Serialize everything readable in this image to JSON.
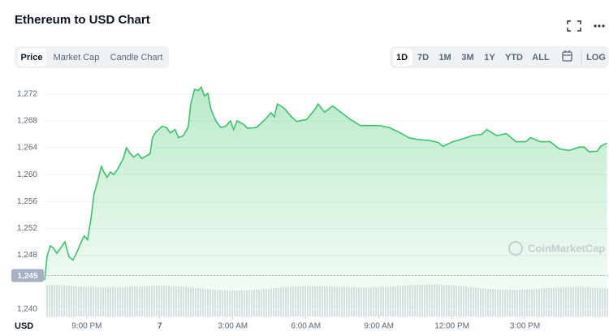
{
  "header": {
    "title": "Ethereum to USD Chart"
  },
  "tabs": [
    "Price",
    "Market Cap",
    "Candle Chart"
  ],
  "ranges": [
    "1D",
    "7D",
    "1M",
    "3M",
    "1Y",
    "YTD",
    "ALL"
  ],
  "log_button": "LOG",
  "watermark": "CoinMarketCap",
  "chart_data": {
    "type": "area",
    "y_label": "USD",
    "color": "#3cc36a",
    "grid": true,
    "x": [
      -4.73,
      -4.63,
      -4.5,
      -4.37,
      -4.23,
      -4.07,
      -3.9,
      -3.73,
      -3.57,
      -3.4,
      -3.23,
      -3.1,
      -2.97,
      -2.83,
      -2.7,
      -2.57,
      -2.4,
      -2.3,
      -2.17,
      -2.03,
      -1.9,
      -1.73,
      -1.5,
      -1.37,
      -1.23,
      -1.07,
      -0.9,
      -0.73,
      -0.4,
      -0.3,
      -0.17,
      0.1,
      0.27,
      0.43,
      0.63,
      0.77,
      0.97,
      1.17,
      1.27,
      1.43,
      1.57,
      1.7,
      1.83,
      1.97,
      2.1,
      2.3,
      2.5,
      2.7,
      2.9,
      3.03,
      3.17,
      3.43,
      3.6,
      3.97,
      4.3,
      4.57,
      4.7,
      4.83,
      5.1,
      5.43,
      5.63,
      6.03,
      6.37,
      6.5,
      6.77,
      7.1,
      7.43,
      7.83,
      8.23,
      8.63,
      9.03,
      9.43,
      9.83,
      10.23,
      10.63,
      11.03,
      11.43,
      11.63,
      12.03,
      12.43,
      12.83,
      13.23,
      13.43,
      13.83,
      14.23,
      14.63,
      15.03,
      15.23,
      15.63,
      16.03,
      16.43,
      16.83,
      17.23,
      17.43,
      17.63,
      17.97,
      18.1,
      18.37
    ],
    "values": [
      1244.3,
      1247.9,
      1249.4,
      1249.1,
      1248.3,
      1249.1,
      1250,
      1247.8,
      1247.3,
      1248.5,
      1250,
      1250.9,
      1250.3,
      1253.4,
      1257.2,
      1258.8,
      1261.2,
      1260.4,
      1259.6,
      1260.4,
      1260.0,
      1260.8,
      1262.4,
      1264.0,
      1263.2,
      1262.6,
      1263.1,
      1262.4,
      1263.1,
      1265.5,
      1266.3,
      1267.2,
      1267.0,
      1266.2,
      1266.7,
      1265.5,
      1265.8,
      1267.1,
      1270.5,
      1272.7,
      1272.5,
      1273.0,
      1271.7,
      1272.1,
      1269.7,
      1268.0,
      1267.0,
      1267.2,
      1268.0,
      1266.7,
      1268.0,
      1267.5,
      1266.9,
      1267.0,
      1268.1,
      1269.2,
      1268.6,
      1270.5,
      1269.9,
      1268.5,
      1267.9,
      1268.2,
      1269.7,
      1270.5,
      1269.3,
      1270.2,
      1269.3,
      1268.2,
      1267.3,
      1267.3,
      1267.3,
      1267.0,
      1266.3,
      1265.5,
      1265.2,
      1265.1,
      1264.8,
      1264.2,
      1264.9,
      1265.3,
      1265.8,
      1266.0,
      1266.7,
      1265.8,
      1266.1,
      1264.9,
      1264.9,
      1265.5,
      1264.9,
      1264.9,
      1263.8,
      1263.6,
      1264.1,
      1264.1,
      1263.4,
      1263.5,
      1264.2,
      1264.7
    ],
    "xlim": [
      -4.73,
      18.45
    ],
    "ylim": [
      1238.9,
      1274.5
    ],
    "xticks": [
      {
        "value": -3,
        "label": "9:00 PM"
      },
      {
        "value": 0,
        "label": "7"
      },
      {
        "value": 3,
        "label": "3:00 AM"
      },
      {
        "value": 6,
        "label": "6:00 AM"
      },
      {
        "value": 9,
        "label": "9:00 AM"
      },
      {
        "value": 12,
        "label": "12:00 PM"
      },
      {
        "value": 15,
        "label": "3:00 PM"
      }
    ],
    "yticks": [
      {
        "value": 1240,
        "label": "1,240"
      },
      {
        "value": 1248,
        "label": "1,248"
      },
      {
        "value": 1252,
        "label": "1,252"
      },
      {
        "value": 1256,
        "label": "1,256"
      },
      {
        "value": 1260,
        "label": "1,260"
      },
      {
        "value": 1264,
        "label": "1,264"
      },
      {
        "value": 1268,
        "label": "1,268"
      },
      {
        "value": 1272,
        "label": "1,272"
      }
    ],
    "price_marker": {
      "value": 1245,
      "label": "1,245"
    }
  }
}
